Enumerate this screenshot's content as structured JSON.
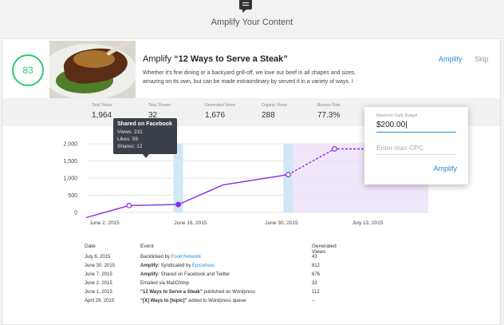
{
  "header": {
    "title": "Amplify Your Content",
    "icon": "content-feed-icon"
  },
  "article": {
    "score": "83",
    "title_prefix": "Amplify ",
    "title": "“12 Ways to Serve a Steak”",
    "excerpt": "Whether it's fine dining or a backyard grill-off, we love our beef in all shapes and sizes. amazing on its own, but can be made extraordinary by served it in a variety of ways. I",
    "amplify_label": "Amplify",
    "skip_label": "Skip"
  },
  "stats": [
    {
      "label": "Total Views",
      "value": "1,964"
    },
    {
      "label": "Total Shares",
      "value": "32"
    },
    {
      "label": "Generated Views",
      "value": "1,676"
    },
    {
      "label": "Organic Views",
      "value": "288"
    },
    {
      "label": "Bounce Rate",
      "value": "77.3%"
    }
  ],
  "chart_data": {
    "type": "line",
    "x_tick_labels": [
      "June 2, 2015",
      "June 16, 2015",
      "June 30, 2015",
      "July 13, 2015"
    ],
    "y_ticks": [
      "2,000",
      "1,500",
      "1,000",
      "500",
      "0"
    ],
    "ylim": [
      0,
      2000
    ],
    "series": [
      {
        "values": [
          [
            -3,
            -150
          ],
          [
            4,
            200
          ],
          [
            12,
            231
          ],
          [
            19,
            800
          ],
          [
            29,
            1100
          ]
        ],
        "style": "solid",
        "color": "#8a2be2"
      },
      {
        "values": [
          [
            29,
            1100
          ],
          [
            36,
            1850
          ],
          [
            48,
            1850
          ]
        ],
        "style": "dashed",
        "color": "#8a2be2"
      }
    ],
    "markers": [
      {
        "x": 4,
        "y": 200,
        "filled": false
      },
      {
        "x": 12,
        "y": 231,
        "filled": true
      },
      {
        "x": 29,
        "y": 1100,
        "filled": false
      },
      {
        "x": 36,
        "y": 1850,
        "filled": false
      }
    ],
    "highlight_days": [
      12,
      29
    ],
    "projected_start": 29,
    "highlight_color": "#cfe6f7",
    "projection_color": "#f1e7fb"
  },
  "tooltip": {
    "title": "Shared on Facebook",
    "views": "Views: 231",
    "likes": "Likes: 59",
    "shares": "Shares: 12"
  },
  "popover": {
    "budget_label": "Maximum Daily Budget",
    "budget_value": "$200.00|",
    "cpc_placeholder": "Enter max CPC",
    "amplify_label": "Amplify"
  },
  "events": {
    "headers": {
      "date": "Date",
      "event": "Event",
      "views": "Generated Views"
    },
    "rows": [
      {
        "date": "July 6, 2015",
        "bold": "",
        "text": "Backlinked by ",
        "link": "Food Network",
        "after": "",
        "views": "43"
      },
      {
        "date": "June 30, 2015",
        "bold": "Amplify:",
        "text": " Syndicated by ",
        "link": "Epicurious",
        "after": "",
        "views": "812"
      },
      {
        "date": "June 7, 2015",
        "bold": "Amplify:",
        "text": " Shared on Facebook and Twitter",
        "link": "",
        "after": "",
        "views": "676"
      },
      {
        "date": "June 2, 2015",
        "bold": "",
        "text": "Emailed via MailChimp",
        "link": "",
        "after": "",
        "views": "33"
      },
      {
        "date": "June 1, 2015",
        "bold": "“12 Ways to Serve a Steak”",
        "text": " published on Wordpress",
        "link": "",
        "after": "",
        "views": "112"
      },
      {
        "date": "April 29, 2015",
        "bold": "“[X] Ways to [topic]”",
        "text": " added to Wordpress queue",
        "link": "",
        "after": "",
        "views": "--"
      }
    ]
  }
}
